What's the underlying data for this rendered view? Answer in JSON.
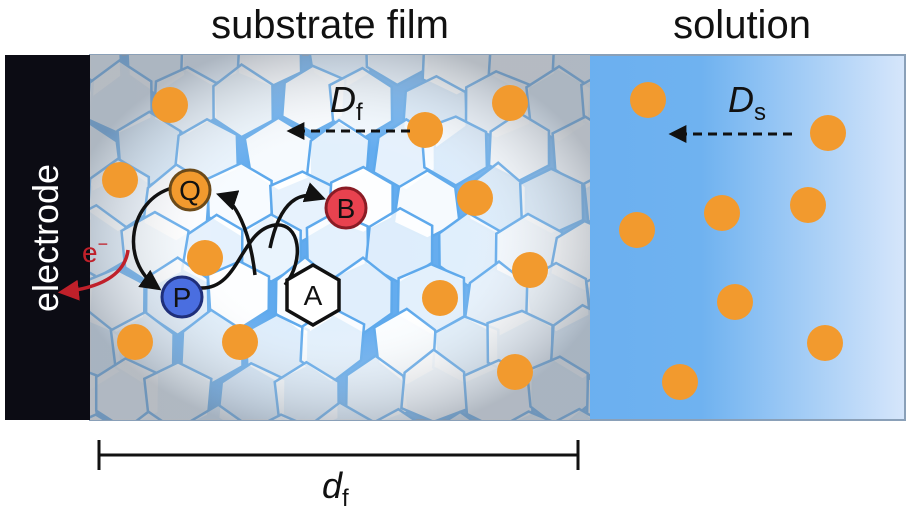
{
  "labels": {
    "film_title": "substrate film",
    "solution_title": "solution",
    "electrode": "electrode",
    "film_diffusion": {
      "symbol": "D",
      "subscript": "f"
    },
    "solution_diffusion": {
      "symbol": "D",
      "subscript": "s"
    },
    "species": [
      "Q",
      "B",
      "P",
      "A"
    ],
    "electron": {
      "symbol": "e",
      "superscript": "−"
    },
    "thickness": {
      "symbol": "d",
      "subscript": "f"
    }
  }
}
